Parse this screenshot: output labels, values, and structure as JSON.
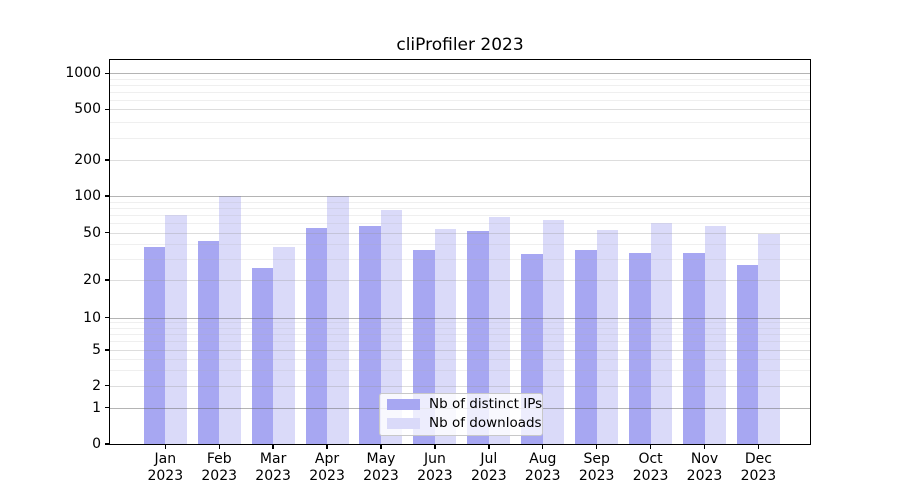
{
  "chart_data": {
    "type": "bar",
    "title": "cliProfiler 2023",
    "categories": [
      "Jan 2023",
      "Feb 2023",
      "Mar 2023",
      "Apr 2023",
      "May 2023",
      "Jun 2023",
      "Jul 2023",
      "Aug 2023",
      "Sep 2023",
      "Oct 2023",
      "Nov 2023",
      "Dec 2023"
    ],
    "x_tick_month": [
      "Jan",
      "Feb",
      "Mar",
      "Apr",
      "May",
      "Jun",
      "Jul",
      "Aug",
      "Sep",
      "Oct",
      "Nov",
      "Dec"
    ],
    "x_tick_year": "2023",
    "series": [
      {
        "name": "Nb of distinct IPs",
        "color": "#a7a7f2",
        "values": [
          38,
          43,
          25,
          55,
          57,
          36,
          52,
          33,
          36,
          34,
          34,
          27
        ]
      },
      {
        "name": "Nb of downloads",
        "color": "#dadaf9",
        "values": [
          70,
          100,
          38,
          100,
          77,
          54,
          67,
          63,
          53,
          60,
          57,
          49
        ]
      }
    ],
    "xlabel": "",
    "ylabel": "",
    "y_scale": "log-like with zero baseline",
    "y_ticks": [
      0,
      1,
      2,
      5,
      10,
      20,
      50,
      100,
      200,
      500,
      1000
    ],
    "y_major_ticks": [
      1,
      10,
      100,
      1000
    ],
    "ylim": [
      0,
      1200
    ],
    "grid": "horizontal",
    "legend_position": "lower center",
    "colors": {
      "grid_major": "#9a9a9a",
      "grid_minor": "#d2d2d2",
      "axis": "#000000",
      "background": "#ffffff"
    }
  }
}
